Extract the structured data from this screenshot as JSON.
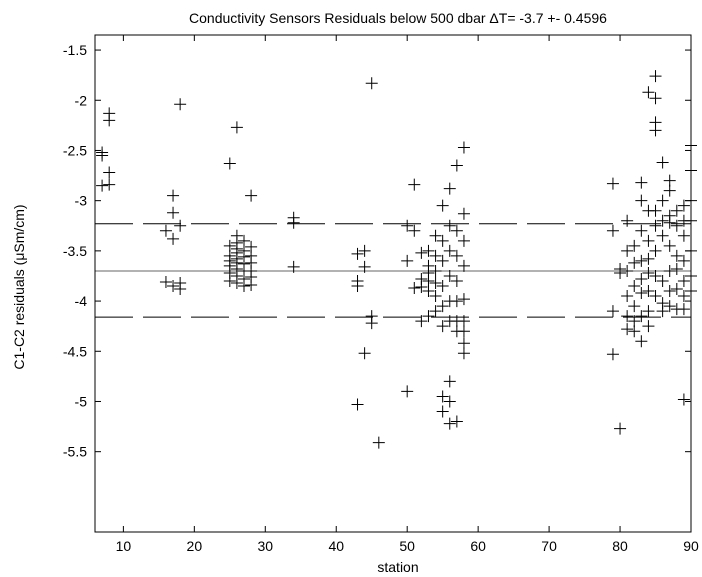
{
  "chart_data": {
    "type": "scatter",
    "title": "Conductivity Sensors Residuals below 500 dbar ΔT= -3.7 +- 0.4596",
    "xlabel": "station",
    "ylabel": "C1-C2 residuals (μSm/cm)",
    "xlim": [
      6,
      90
    ],
    "ylim": [
      -6.3,
      -1.35
    ],
    "y_reversed": true,
    "xticks": [
      10,
      20,
      30,
      40,
      50,
      60,
      70,
      80,
      90
    ],
    "yticks": [
      -1.5,
      -2,
      -2.5,
      -3,
      -3.5,
      -4,
      -4.5,
      -5,
      -5.5
    ],
    "grid": false,
    "marker": "+",
    "reference_lines": [
      {
        "y": -3.7,
        "style": "solid"
      },
      {
        "y": -3.23,
        "style": "dashed"
      },
      {
        "y": -4.16,
        "style": "dashed"
      }
    ],
    "series": [
      {
        "points": [
          [
            7,
            -2.52
          ],
          [
            7,
            -2.55
          ],
          [
            7,
            -2.85
          ],
          [
            8,
            -2.13
          ],
          [
            8,
            -2.2
          ],
          [
            8,
            -2.72
          ],
          [
            8,
            -2.84
          ],
          [
            16,
            -3.3
          ],
          [
            16,
            -3.81
          ],
          [
            17,
            -2.95
          ],
          [
            17,
            -3.12
          ],
          [
            17,
            -3.38
          ],
          [
            17,
            -3.85
          ],
          [
            18,
            -2.04
          ],
          [
            18,
            -3.25
          ],
          [
            18,
            -3.82
          ],
          [
            18,
            -3.88
          ],
          [
            25,
            -2.63
          ],
          [
            25,
            -3.45
          ],
          [
            25,
            -3.55
          ],
          [
            25,
            -3.6
          ],
          [
            25,
            -3.65
          ],
          [
            25,
            -3.72
          ],
          [
            25,
            -3.8
          ],
          [
            26,
            -2.27
          ],
          [
            26,
            -3.35
          ],
          [
            26,
            -3.42
          ],
          [
            26,
            -3.48
          ],
          [
            26,
            -3.52
          ],
          [
            26,
            -3.58
          ],
          [
            26,
            -3.62
          ],
          [
            26,
            -3.68
          ],
          [
            26,
            -3.75
          ],
          [
            26,
            -3.82
          ],
          [
            27,
            -3.4
          ],
          [
            27,
            -3.5
          ],
          [
            27,
            -3.56
          ],
          [
            27,
            -3.63
          ],
          [
            27,
            -3.7
          ],
          [
            27,
            -3.78
          ],
          [
            27,
            -3.85
          ],
          [
            28,
            -2.95
          ],
          [
            28,
            -3.46
          ],
          [
            28,
            -3.55
          ],
          [
            28,
            -3.62
          ],
          [
            28,
            -3.7
          ],
          [
            28,
            -3.76
          ],
          [
            28,
            -3.84
          ],
          [
            34,
            -3.17
          ],
          [
            34,
            -3.22
          ],
          [
            34,
            -3.66
          ],
          [
            43,
            -3.53
          ],
          [
            43,
            -3.8
          ],
          [
            43,
            -3.85
          ],
          [
            43,
            -5.03
          ],
          [
            44,
            -3.5
          ],
          [
            44,
            -4.52
          ],
          [
            44,
            -3.66
          ],
          [
            45,
            -1.83
          ],
          [
            45,
            -4.15
          ],
          [
            45,
            -4.22
          ],
          [
            46,
            -5.41
          ],
          [
            50,
            -3.25
          ],
          [
            50,
            -3.6
          ],
          [
            50,
            -4.9
          ],
          [
            51,
            -2.84
          ],
          [
            51,
            -3.3
          ],
          [
            51,
            -3.87
          ],
          [
            52,
            -3.52
          ],
          [
            52,
            -3.78
          ],
          [
            52,
            -3.86
          ],
          [
            52,
            -4.2
          ],
          [
            53,
            -3.5
          ],
          [
            53,
            -3.65
          ],
          [
            53,
            -3.72
          ],
          [
            53,
            -3.8
          ],
          [
            53,
            -3.9
          ],
          [
            53,
            -4.15
          ],
          [
            54,
            -3.35
          ],
          [
            54,
            -3.55
          ],
          [
            54,
            -3.7
          ],
          [
            54,
            -3.82
          ],
          [
            54,
            -3.95
          ],
          [
            54,
            -4.1
          ],
          [
            55,
            -3.05
          ],
          [
            55,
            -3.4
          ],
          [
            55,
            -3.6
          ],
          [
            55,
            -3.85
          ],
          [
            55,
            -4.05
          ],
          [
            55,
            -4.25
          ],
          [
            55,
            -4.95
          ],
          [
            55,
            -5.1
          ],
          [
            56,
            -2.88
          ],
          [
            56,
            -3.25
          ],
          [
            56,
            -3.5
          ],
          [
            56,
            -3.75
          ],
          [
            56,
            -4.0
          ],
          [
            56,
            -4.2
          ],
          [
            56,
            -4.8
          ],
          [
            56,
            -5.0
          ],
          [
            56,
            -5.22
          ],
          [
            57,
            -2.65
          ],
          [
            57,
            -3.3
          ],
          [
            57,
            -3.55
          ],
          [
            57,
            -3.8
          ],
          [
            57,
            -4.0
          ],
          [
            57,
            -4.2
          ],
          [
            57,
            -4.3
          ],
          [
            57,
            -5.2
          ],
          [
            58,
            -2.47
          ],
          [
            58,
            -3.13
          ],
          [
            58,
            -3.4
          ],
          [
            58,
            -3.65
          ],
          [
            58,
            -3.98
          ],
          [
            58,
            -4.2
          ],
          [
            58,
            -4.3
          ],
          [
            58,
            -4.42
          ],
          [
            58,
            -4.52
          ],
          [
            79,
            -2.83
          ],
          [
            79,
            -3.3
          ],
          [
            79,
            -4.1
          ],
          [
            79,
            -4.53
          ],
          [
            80,
            -3.68
          ],
          [
            80,
            -3.72
          ],
          [
            80,
            -5.27
          ],
          [
            81,
            -3.2
          ],
          [
            81,
            -3.5
          ],
          [
            81,
            -3.7
          ],
          [
            81,
            -3.95
          ],
          [
            81,
            -4.15
          ],
          [
            81,
            -4.28
          ],
          [
            82,
            -3.45
          ],
          [
            82,
            -3.62
          ],
          [
            82,
            -3.85
          ],
          [
            82,
            -4.05
          ],
          [
            82,
            -4.2
          ],
          [
            82,
            -4.3
          ],
          [
            83,
            -2.82
          ],
          [
            83,
            -3.0
          ],
          [
            83,
            -3.3
          ],
          [
            83,
            -3.6
          ],
          [
            83,
            -3.78
          ],
          [
            83,
            -3.92
          ],
          [
            83,
            -4.15
          ],
          [
            83,
            -4.4
          ],
          [
            84,
            -1.92
          ],
          [
            84,
            -3.1
          ],
          [
            84,
            -3.4
          ],
          [
            84,
            -3.58
          ],
          [
            84,
            -3.72
          ],
          [
            84,
            -3.9
          ],
          [
            84,
            -4.1
          ],
          [
            84,
            -4.25
          ],
          [
            85,
            -1.76
          ],
          [
            85,
            -1.98
          ],
          [
            85,
            -2.22
          ],
          [
            85,
            -2.3
          ],
          [
            85,
            -3.1
          ],
          [
            85,
            -3.25
          ],
          [
            85,
            -3.5
          ],
          [
            85,
            -3.75
          ],
          [
            85,
            -3.95
          ],
          [
            86,
            -2.62
          ],
          [
            86,
            -3.0
          ],
          [
            86,
            -3.2
          ],
          [
            86,
            -3.35
          ],
          [
            86,
            -3.8
          ],
          [
            86,
            -4.02
          ],
          [
            86,
            -4.1
          ],
          [
            87,
            -2.8
          ],
          [
            87,
            -2.9
          ],
          [
            87,
            -3.15
          ],
          [
            87,
            -3.22
          ],
          [
            87,
            -3.45
          ],
          [
            87,
            -3.7
          ],
          [
            87,
            -3.9
          ],
          [
            87,
            -4.05
          ],
          [
            88,
            -3.1
          ],
          [
            88,
            -3.25
          ],
          [
            88,
            -3.55
          ],
          [
            88,
            -3.68
          ],
          [
            88,
            -3.88
          ],
          [
            88,
            -4.08
          ],
          [
            89,
            -3.05
          ],
          [
            89,
            -3.2
          ],
          [
            89,
            -3.35
          ],
          [
            89,
            -3.6
          ],
          [
            89,
            -3.8
          ],
          [
            89,
            -3.95
          ],
          [
            89,
            -4.08
          ],
          [
            89,
            -4.98
          ],
          [
            90,
            -2.45
          ],
          [
            90,
            -2.7
          ],
          [
            90,
            -3.0
          ],
          [
            90,
            -3.2
          ],
          [
            90,
            -3.5
          ],
          [
            90,
            -3.75
          ],
          [
            90,
            -3.9
          ]
        ]
      }
    ]
  }
}
